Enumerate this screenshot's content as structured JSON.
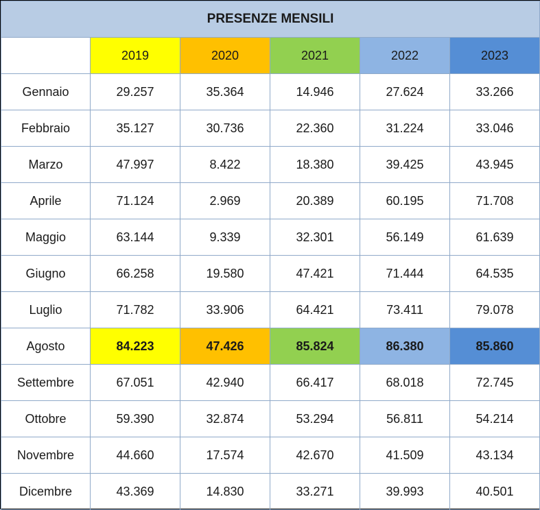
{
  "chart_data": {
    "type": "table",
    "title": "PRESENZE MENSILI",
    "columns": [
      "2019",
      "2020",
      "2021",
      "2022",
      "2023"
    ],
    "column_colors": [
      "#ffff00",
      "#ffc000",
      "#92d050",
      "#8eb4e3",
      "#558ed5"
    ],
    "highlight_row": "Agosto",
    "rows": [
      {
        "label": "Gennaio",
        "values": [
          "29.257",
          "35.364",
          "14.946",
          "27.624",
          "33.266"
        ]
      },
      {
        "label": "Febbraio",
        "values": [
          "35.127",
          "30.736",
          "22.360",
          "31.224",
          "33.046"
        ]
      },
      {
        "label": "Marzo",
        "values": [
          "47.997",
          "8.422",
          "18.380",
          "39.425",
          "43.945"
        ]
      },
      {
        "label": "Aprile",
        "values": [
          "71.124",
          "2.969",
          "20.389",
          "60.195",
          "71.708"
        ]
      },
      {
        "label": "Maggio",
        "values": [
          "63.144",
          "9.339",
          "32.301",
          "56.149",
          "61.639"
        ]
      },
      {
        "label": "Giugno",
        "values": [
          "66.258",
          "19.580",
          "47.421",
          "71.444",
          "64.535"
        ]
      },
      {
        "label": "Luglio",
        "values": [
          "71.782",
          "33.906",
          "64.421",
          "73.411",
          "79.078"
        ]
      },
      {
        "label": "Agosto",
        "values": [
          "84.223",
          "47.426",
          "85.824",
          "86.380",
          "85.860"
        ]
      },
      {
        "label": "Settembre",
        "values": [
          "67.051",
          "42.940",
          "66.417",
          "68.018",
          "72.745"
        ]
      },
      {
        "label": "Ottobre",
        "values": [
          "59.390",
          "32.874",
          "53.294",
          "56.811",
          "54.214"
        ]
      },
      {
        "label": "Novembre",
        "values": [
          "44.660",
          "17.574",
          "42.670",
          "41.509",
          "43.134"
        ]
      },
      {
        "label": "Dicembre",
        "values": [
          "43.369",
          "14.830",
          "33.271",
          "39.993",
          "40.501"
        ]
      }
    ]
  }
}
